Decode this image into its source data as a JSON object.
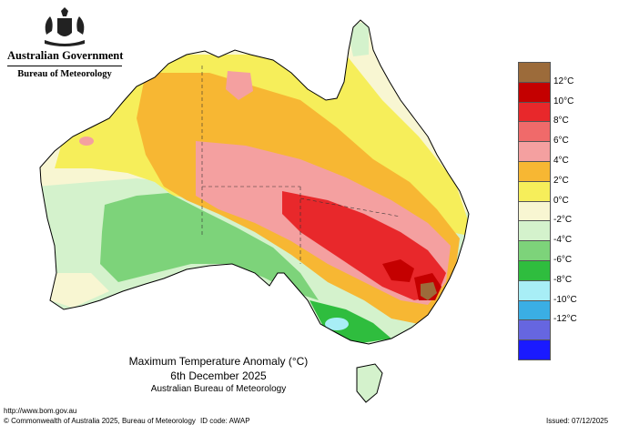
{
  "header": {
    "government": "Australian Government",
    "agency": "Bureau of Meteorology"
  },
  "title": {
    "line1": "Maximum Temperature Anomaly (°C)",
    "line2": "6th December 2025",
    "line3": "Australian Bureau of Meteorology"
  },
  "legend": [
    {
      "label": "",
      "color": "#9c6b3a"
    },
    {
      "label": "12°C",
      "color": "#c40000"
    },
    {
      "label": "10°C",
      "color": "#e8282b"
    },
    {
      "label": "8°C",
      "color": "#f06a6a"
    },
    {
      "label": "6°C",
      "color": "#f4a0a0"
    },
    {
      "label": "4°C",
      "color": "#f7b733"
    },
    {
      "label": "2°C",
      "color": "#f6ee5a"
    },
    {
      "label": "0°C",
      "color": "#f8f6d2"
    },
    {
      "label": "-2°C",
      "color": "#d4f2cc"
    },
    {
      "label": "-4°C",
      "color": "#7dd37a"
    },
    {
      "label": "-6°C",
      "color": "#2fbd3e"
    },
    {
      "label": "-8°C",
      "color": "#a8eef6"
    },
    {
      "label": "-10°C",
      "color": "#3aaee4"
    },
    {
      "label": "-12°C",
      "color": "#6666e0"
    },
    {
      "label": "",
      "color": "#1a1aff"
    }
  ],
  "footer": {
    "url": "http://www.bom.gov.au",
    "copyright": "© Commonwealth of Australia 2025, Bureau of Meteorology",
    "id_code": "ID code: AWAP",
    "issued": "Issued: 07/12/2025"
  }
}
